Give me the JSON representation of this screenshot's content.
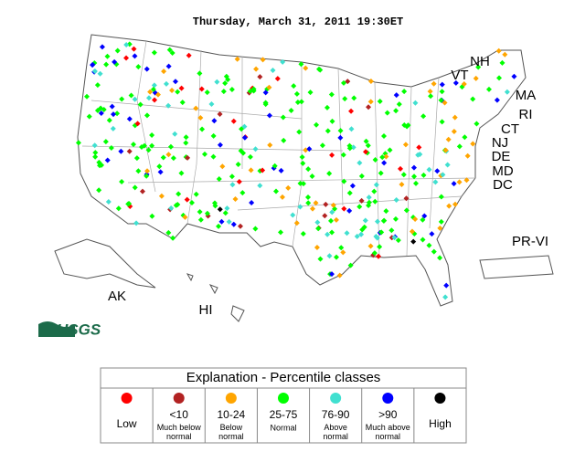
{
  "title": "Thursday, March 31, 2011 19:30ET",
  "state_labels": [
    "NH",
    "VT",
    "MA",
    "RI",
    "CT",
    "NJ",
    "DE",
    "MD",
    "DC",
    "PR-VI",
    "AK",
    "HI"
  ],
  "logo": "USGS",
  "legend": {
    "title": "Explanation - Percentile classes",
    "classes": [
      {
        "label": "Low",
        "color": "#ff0000"
      },
      {
        "range": "<10",
        "label": "Much below normal",
        "color": "#b22222"
      },
      {
        "range": "10-24",
        "label": "Below normal",
        "color": "#ffa500"
      },
      {
        "range": "25-75",
        "label": "Normal",
        "color": "#00ff00"
      },
      {
        "range": "76-90",
        "label": "Above normal",
        "color": "#40e0d0"
      },
      {
        "range": ">90",
        "label": "Much above normal",
        "color": "#0000ff"
      },
      {
        "label": "High",
        "color": "#000000"
      }
    ]
  }
}
